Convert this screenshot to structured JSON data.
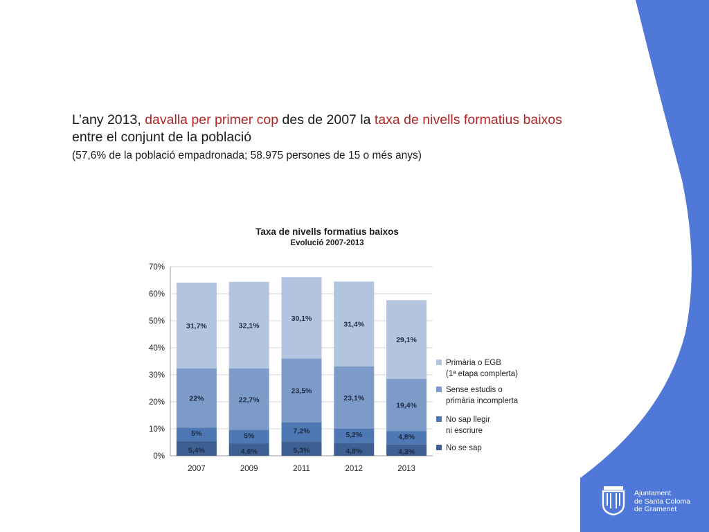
{
  "headline": {
    "part1": "L’any 2013, ",
    "part2_red": "davalla per primer cop",
    "part3": " des de 2007 la ",
    "part4_red": "taxa de nivells formatius baixos",
    "part5": " entre el conjunt de la població",
    "subline": "(57,6% de la població empadronada; 58.975 persones de 15 o més anys)"
  },
  "colors": {
    "accent_red": "#b42626",
    "side_blue": "#4f78d8"
  },
  "logo": {
    "lines": [
      "Ajuntament",
      "de Santa Coloma",
      "de Gramenet"
    ],
    "icon": "coat-of-arms-icon"
  },
  "chart_data": {
    "type": "bar",
    "stacked": true,
    "title": "Taxa de nivells formatius baixos",
    "subtitle": "Evolució 2007-2013",
    "categories": [
      "2007",
      "2009",
      "2011",
      "2012",
      "2013"
    ],
    "ylim": [
      0,
      70
    ],
    "yticks": [
      "0%",
      "10%",
      "20%",
      "30%",
      "40%",
      "50%",
      "60%",
      "70%"
    ],
    "grid": true,
    "legend_position": "right",
    "series": [
      {
        "name": "No se sap",
        "color": "#3e5f91",
        "values": [
          5.4,
          4.6,
          5.3,
          4.8,
          4.3
        ],
        "labels": [
          "5,4%",
          "4,6%",
          "5,3%",
          "4,8%",
          "4,3%"
        ]
      },
      {
        "name": "No sap llegir ni escriure",
        "legend_lines": [
          "No sap llegir",
          "ni escriure"
        ],
        "color": "#4e78b3",
        "values": [
          5,
          5,
          7.2,
          5.2,
          4.8
        ],
        "labels": [
          "5%",
          "5%",
          "7,2%",
          "5,2%",
          "4,8%"
        ]
      },
      {
        "name": "Sense estudis o primària incomplerta",
        "legend_lines": [
          "Sense estudis o",
          "primària incomplerta"
        ],
        "color": "#7d9bc9",
        "values": [
          22,
          22.7,
          23.5,
          23.1,
          19.4
        ],
        "labels": [
          "22%",
          "22,7%",
          "23,5%",
          "23,1%",
          "19,4%"
        ]
      },
      {
        "name": "Primària o EGB (1ª etapa complerta)",
        "legend_lines": [
          "Primària o EGB",
          "(1ª etapa complerta)"
        ],
        "color": "#b3c4e0",
        "values": [
          31.7,
          32.1,
          30.1,
          31.4,
          29.1
        ],
        "labels": [
          "31,7%",
          "32,1%",
          "30,1%",
          "31,4%",
          "29,1%"
        ]
      }
    ]
  }
}
